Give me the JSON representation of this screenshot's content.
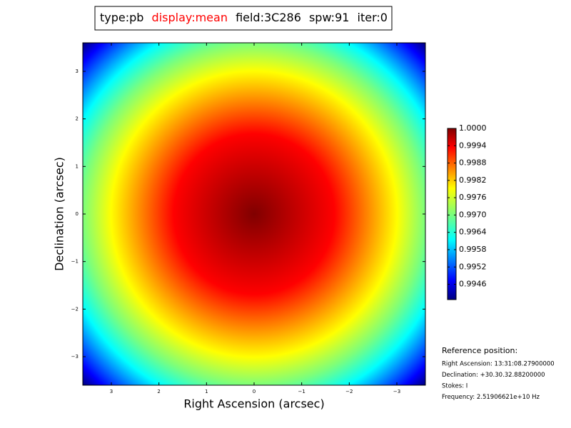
{
  "chart_data": {
    "type": "heatmap",
    "title": {
      "type": "type:pb",
      "display": "display:mean",
      "field": "field:3C286",
      "spw": "spw:91",
      "iter": "iter:0"
    },
    "title_highlight_color": "#ff0000",
    "x_label": "Right Ascension (arcsec)",
    "y_label": "Declination (arcsec)",
    "xlim": [
      3.6,
      -3.6
    ],
    "xticks": [
      3,
      2,
      1,
      0,
      {
        "value": -1,
        "label": "−1"
      },
      {
        "value": -2,
        "label": "−2"
      },
      {
        "value": -3,
        "label": "−3"
      }
    ],
    "ylim": [
      -3.6,
      3.6
    ],
    "yticks": [
      3,
      2,
      1,
      0,
      {
        "value": -1,
        "label": "−1"
      },
      {
        "value": -2,
        "label": "−2"
      },
      {
        "value": -3,
        "label": "−3"
      }
    ],
    "colormap": "jet",
    "colorbar": {
      "lim": [
        0.99407,
        1.0
      ],
      "ticks": [
        {
          "value": 1,
          "label": "1.0000"
        },
        0.9994,
        0.9988,
        0.9982,
        0.9976,
        {
          "value": 0.997,
          "label": "0.9970"
        },
        0.9964,
        0.9958,
        0.9952,
        0.9946
      ]
    },
    "reference": {
      "heading": "Reference position:",
      "lines": [
        "Right Ascension: 13:31:08.27900000",
        "Declination: +30.30.32.88200000",
        "Stokes: I",
        "Frequency: 2.51906621e+10 Hz"
      ]
    }
  }
}
